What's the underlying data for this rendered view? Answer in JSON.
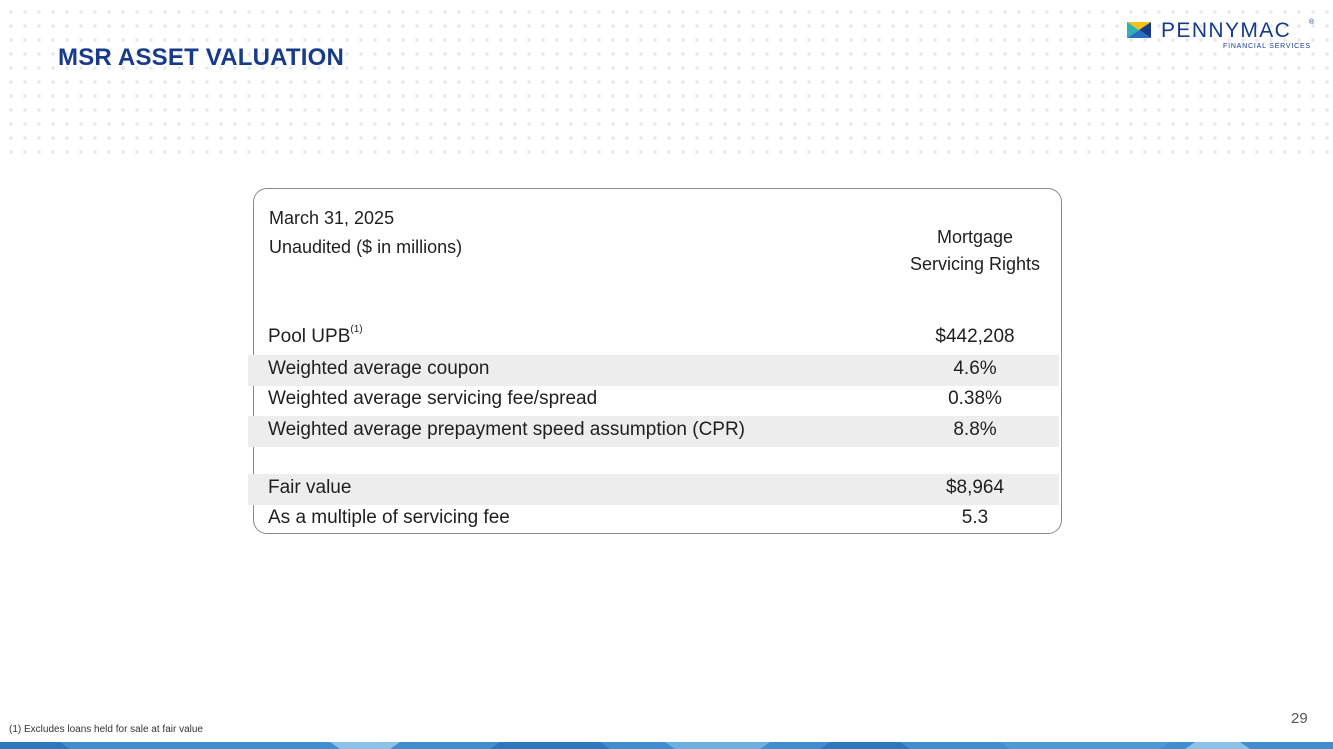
{
  "slide": {
    "title": "MSR ASSET VALUATION",
    "page_number": "29",
    "footnote": "(1) Excludes loans held for sale at fair value"
  },
  "logo": {
    "wordmark": "PENNYMAC",
    "subtitle": "FINANCIAL SERVICES",
    "registered": "®"
  },
  "table": {
    "date_line": "March 31, 2025",
    "units_line": "Unaudited ($ in millions)",
    "column_header_line1": "Mortgage",
    "column_header_line2": "Servicing Rights",
    "rows": [
      {
        "label": "Pool UPB",
        "footnote_ref": "(1)",
        "value": "$442,208",
        "shaded": false
      },
      {
        "label": "Weighted average coupon",
        "value": "4.6%",
        "shaded": true
      },
      {
        "label": "Weighted average servicing fee/spread",
        "value": "0.38%",
        "shaded": false
      },
      {
        "label": "Weighted average prepayment speed assumption (CPR)",
        "value": "8.8%",
        "shaded": true
      },
      {
        "label": "Fair value",
        "value": "$8,964",
        "shaded": true
      },
      {
        "label": "As a multiple of servicing fee",
        "value": "5.3",
        "shaded": false
      }
    ]
  },
  "colors": {
    "title_blue": "#183a8a",
    "row_shade": "#ededed",
    "logo_yellow": "#f2c21b",
    "logo_teal": "#2bb3b1"
  }
}
